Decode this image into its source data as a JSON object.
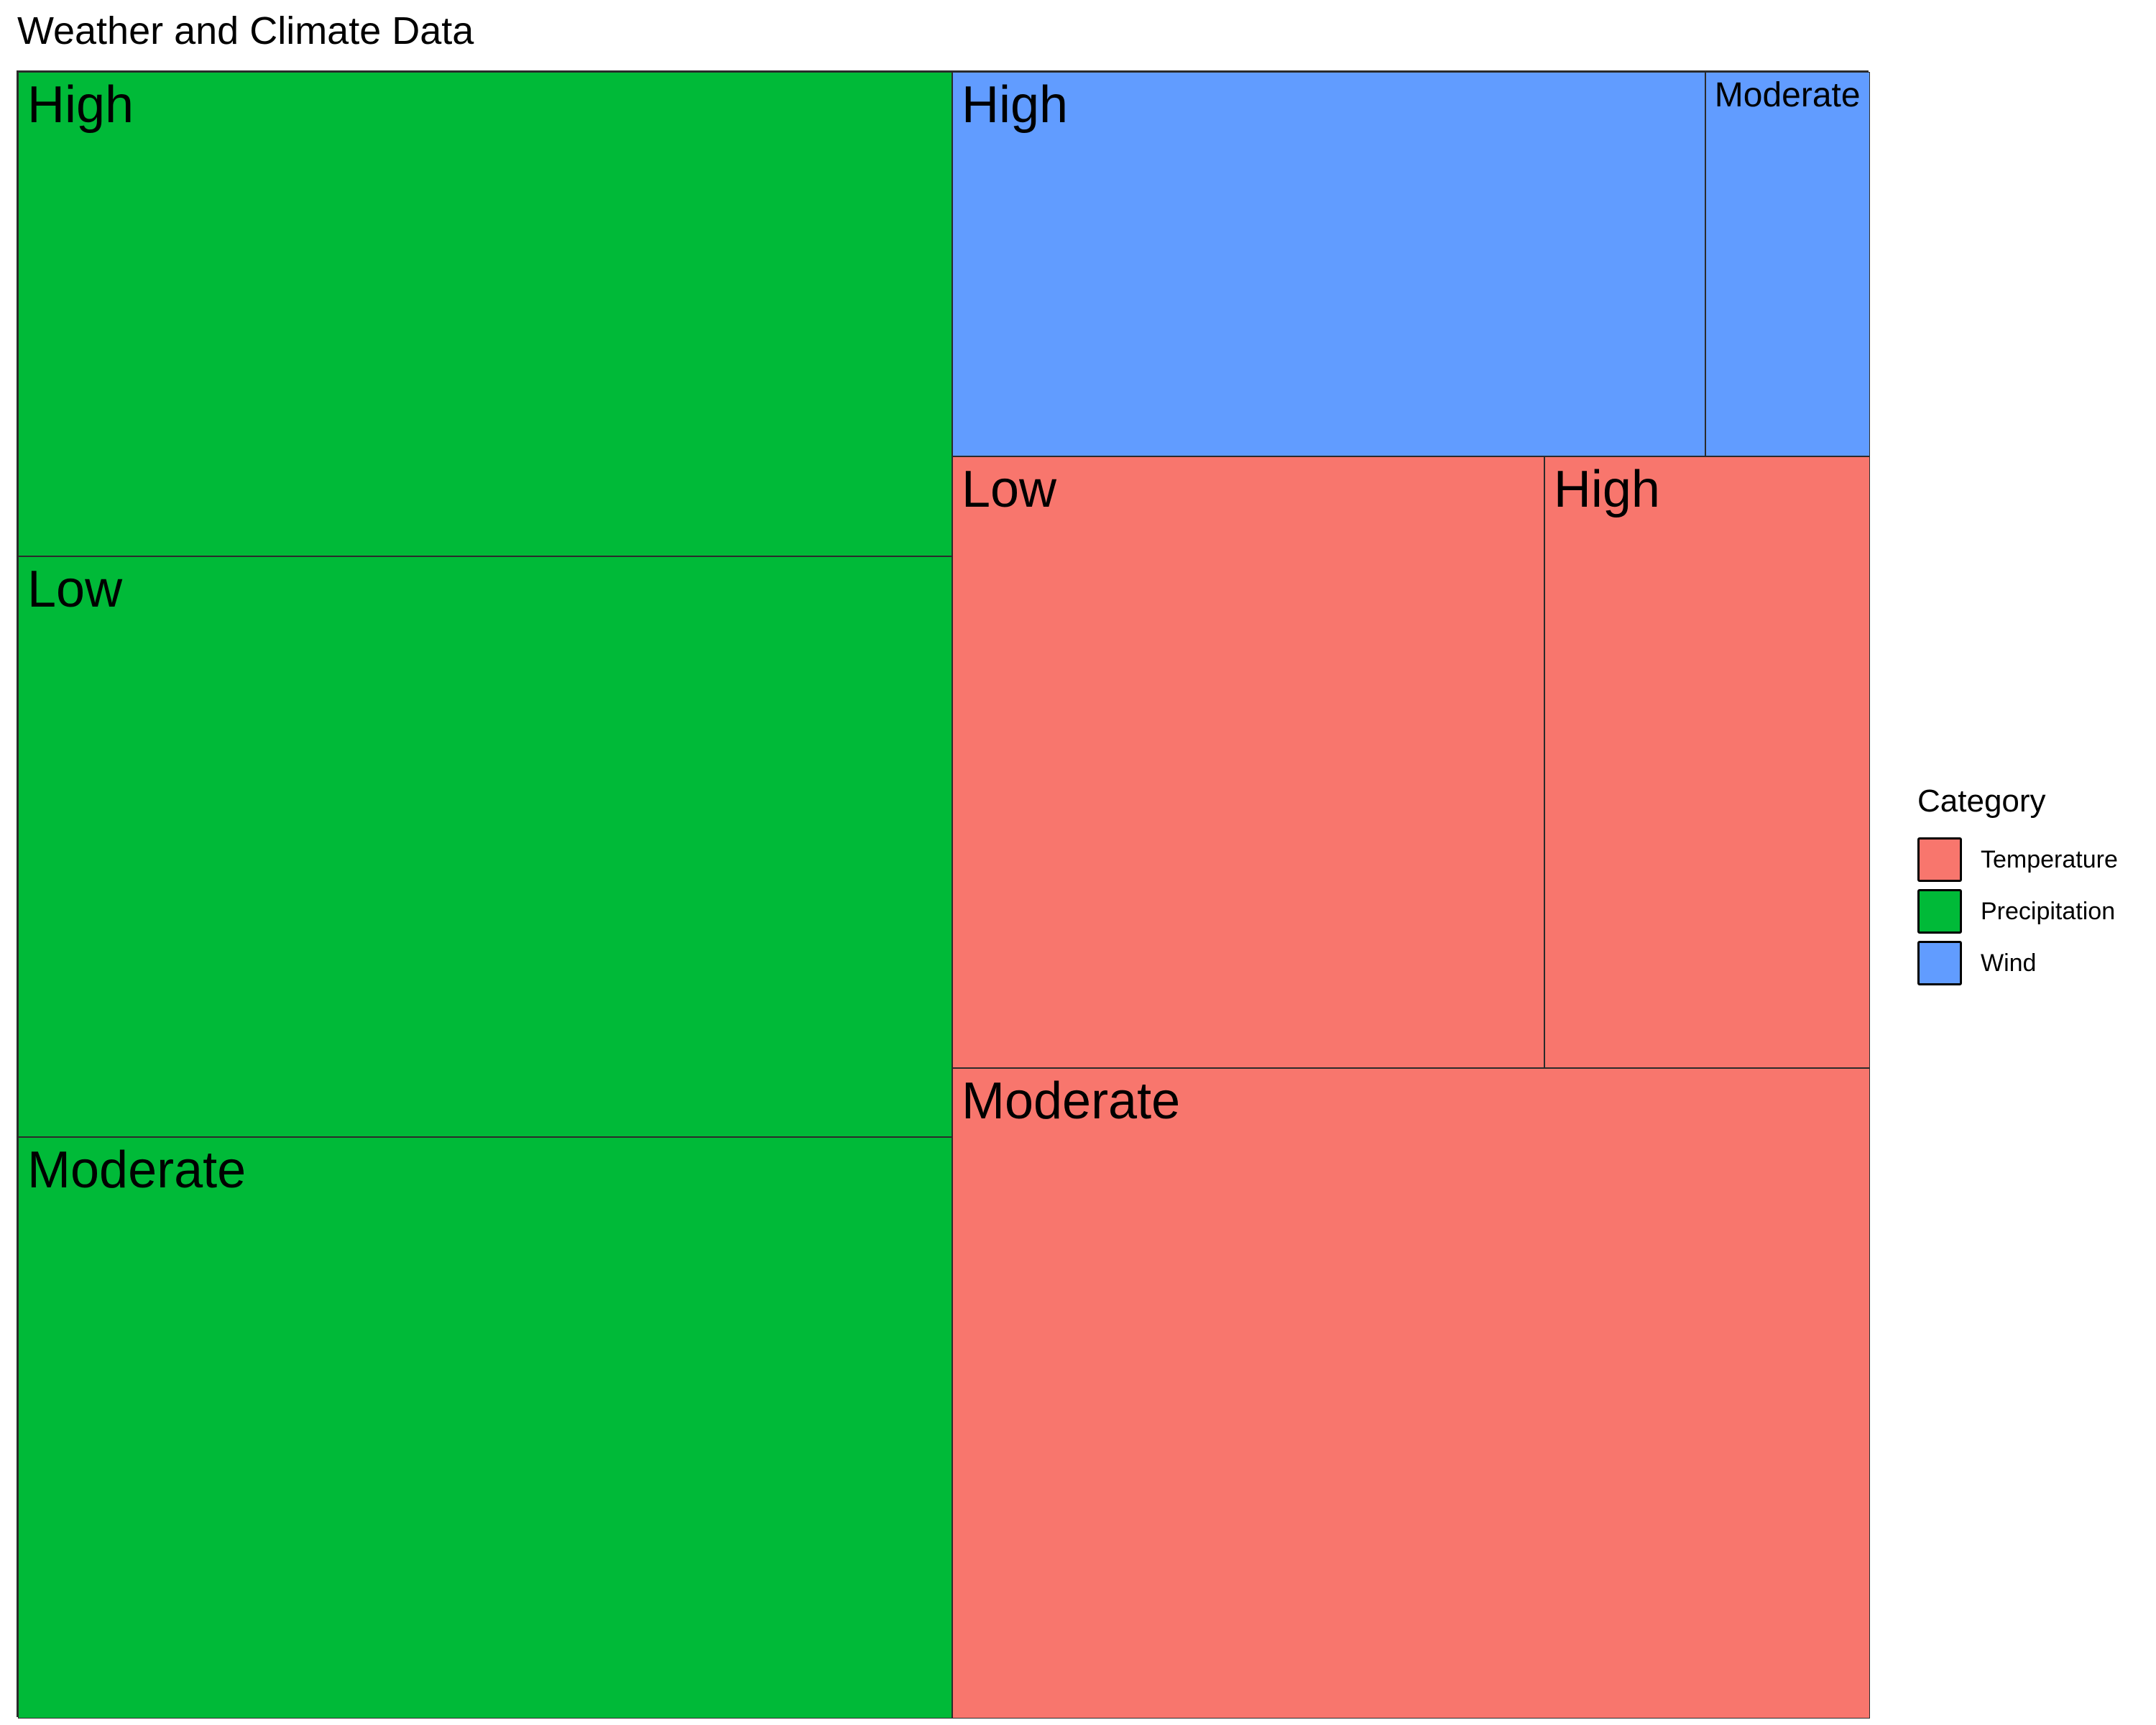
{
  "chart_data": {
    "type": "treemap",
    "title": "Weather and Climate Data",
    "legend": {
      "title": "Category",
      "position": "right",
      "entries": [
        "Temperature",
        "Precipitation",
        "Wind"
      ]
    },
    "colors": {
      "Temperature": "#F8766D",
      "Precipitation": "#00BA38",
      "Wind": "#619CFF"
    },
    "groups": [
      {
        "category": "Precipitation",
        "children": [
          {
            "label": "High",
            "value": 25
          },
          {
            "label": "Low",
            "value": 30
          },
          {
            "label": "Moderate",
            "value": 30
          }
        ]
      },
      {
        "category": "Temperature",
        "children": [
          {
            "label": "Low",
            "value": 20
          },
          {
            "label": "High",
            "value": 11
          },
          {
            "label": "Moderate",
            "value": 33
          }
        ]
      },
      {
        "category": "Wind",
        "children": [
          {
            "label": "High",
            "value": 16
          },
          {
            "label": "Moderate",
            "value": 3.5
          }
        ]
      }
    ]
  }
}
